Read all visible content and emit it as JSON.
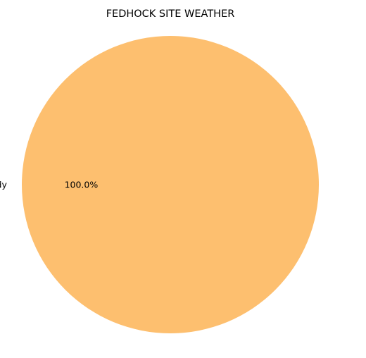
{
  "chart_data": {
    "type": "pie",
    "title": "FEDHOCK SITE WEATHER",
    "slices": [
      {
        "label": "Partly cloudy",
        "value": 100.0,
        "pct_label": "100.0%",
        "color": "#FDBF6F"
      }
    ]
  }
}
